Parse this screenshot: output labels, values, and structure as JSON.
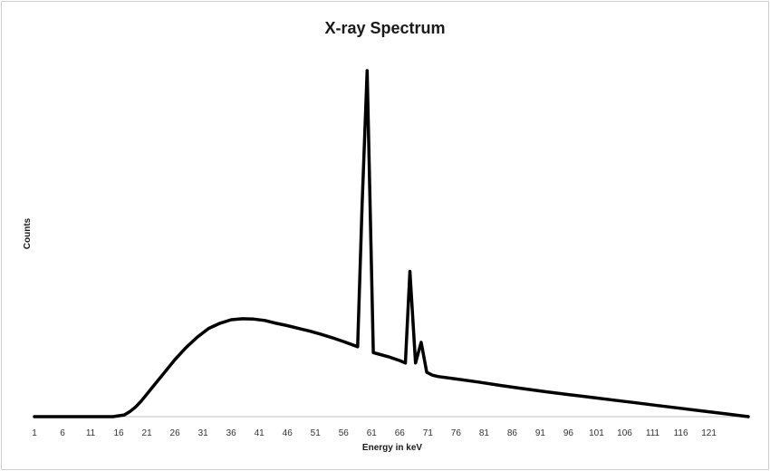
{
  "chart_data": {
    "type": "line",
    "title": "X-ray Spectrum",
    "xlabel": "Energy in keV",
    "ylabel": "Counts",
    "x_ticks": [
      "1",
      "6",
      "11",
      "16",
      "21",
      "26",
      "31",
      "36",
      "41",
      "46",
      "51",
      "56",
      "61",
      "66",
      "71",
      "76",
      "81",
      "86",
      "91",
      "96",
      "101",
      "106",
      "111",
      "116",
      "121"
    ],
    "xlim": [
      1,
      128
    ],
    "ylim": [
      0,
      100
    ],
    "grid": false,
    "legend": "none",
    "line_color": "#000000",
    "series": [
      {
        "x": [
          1,
          15,
          17,
          18,
          19,
          20,
          21,
          22,
          24,
          26,
          28,
          30,
          32,
          34,
          36,
          38,
          40,
          42,
          44,
          46,
          48,
          50,
          52,
          54,
          56,
          58.5,
          59.3,
          60.2,
          61.3,
          62,
          64,
          66,
          67,
          67.8,
          68.8,
          69.8,
          70.8,
          71.8,
          72.8,
          76,
          80,
          84,
          88,
          92,
          96,
          100,
          104,
          108,
          112,
          116,
          120,
          124,
          128
        ],
        "y": [
          0,
          0,
          0.5,
          1.5,
          2.8,
          4.5,
          6.5,
          8.5,
          12.5,
          16.5,
          20,
          23,
          25.5,
          27,
          28,
          28.3,
          28.2,
          27.8,
          27,
          26.3,
          25.5,
          24.7,
          23.8,
          22.8,
          21.7,
          20.2,
          61,
          100,
          18.5,
          18.2,
          17.3,
          16.2,
          15.5,
          42,
          15.5,
          21.5,
          12.8,
          12,
          11.6,
          10.9,
          10,
          9,
          8.1,
          7.2,
          6.4,
          5.6,
          4.8,
          4,
          3.2,
          2.4,
          1.6,
          0.8,
          0
        ]
      }
    ]
  }
}
